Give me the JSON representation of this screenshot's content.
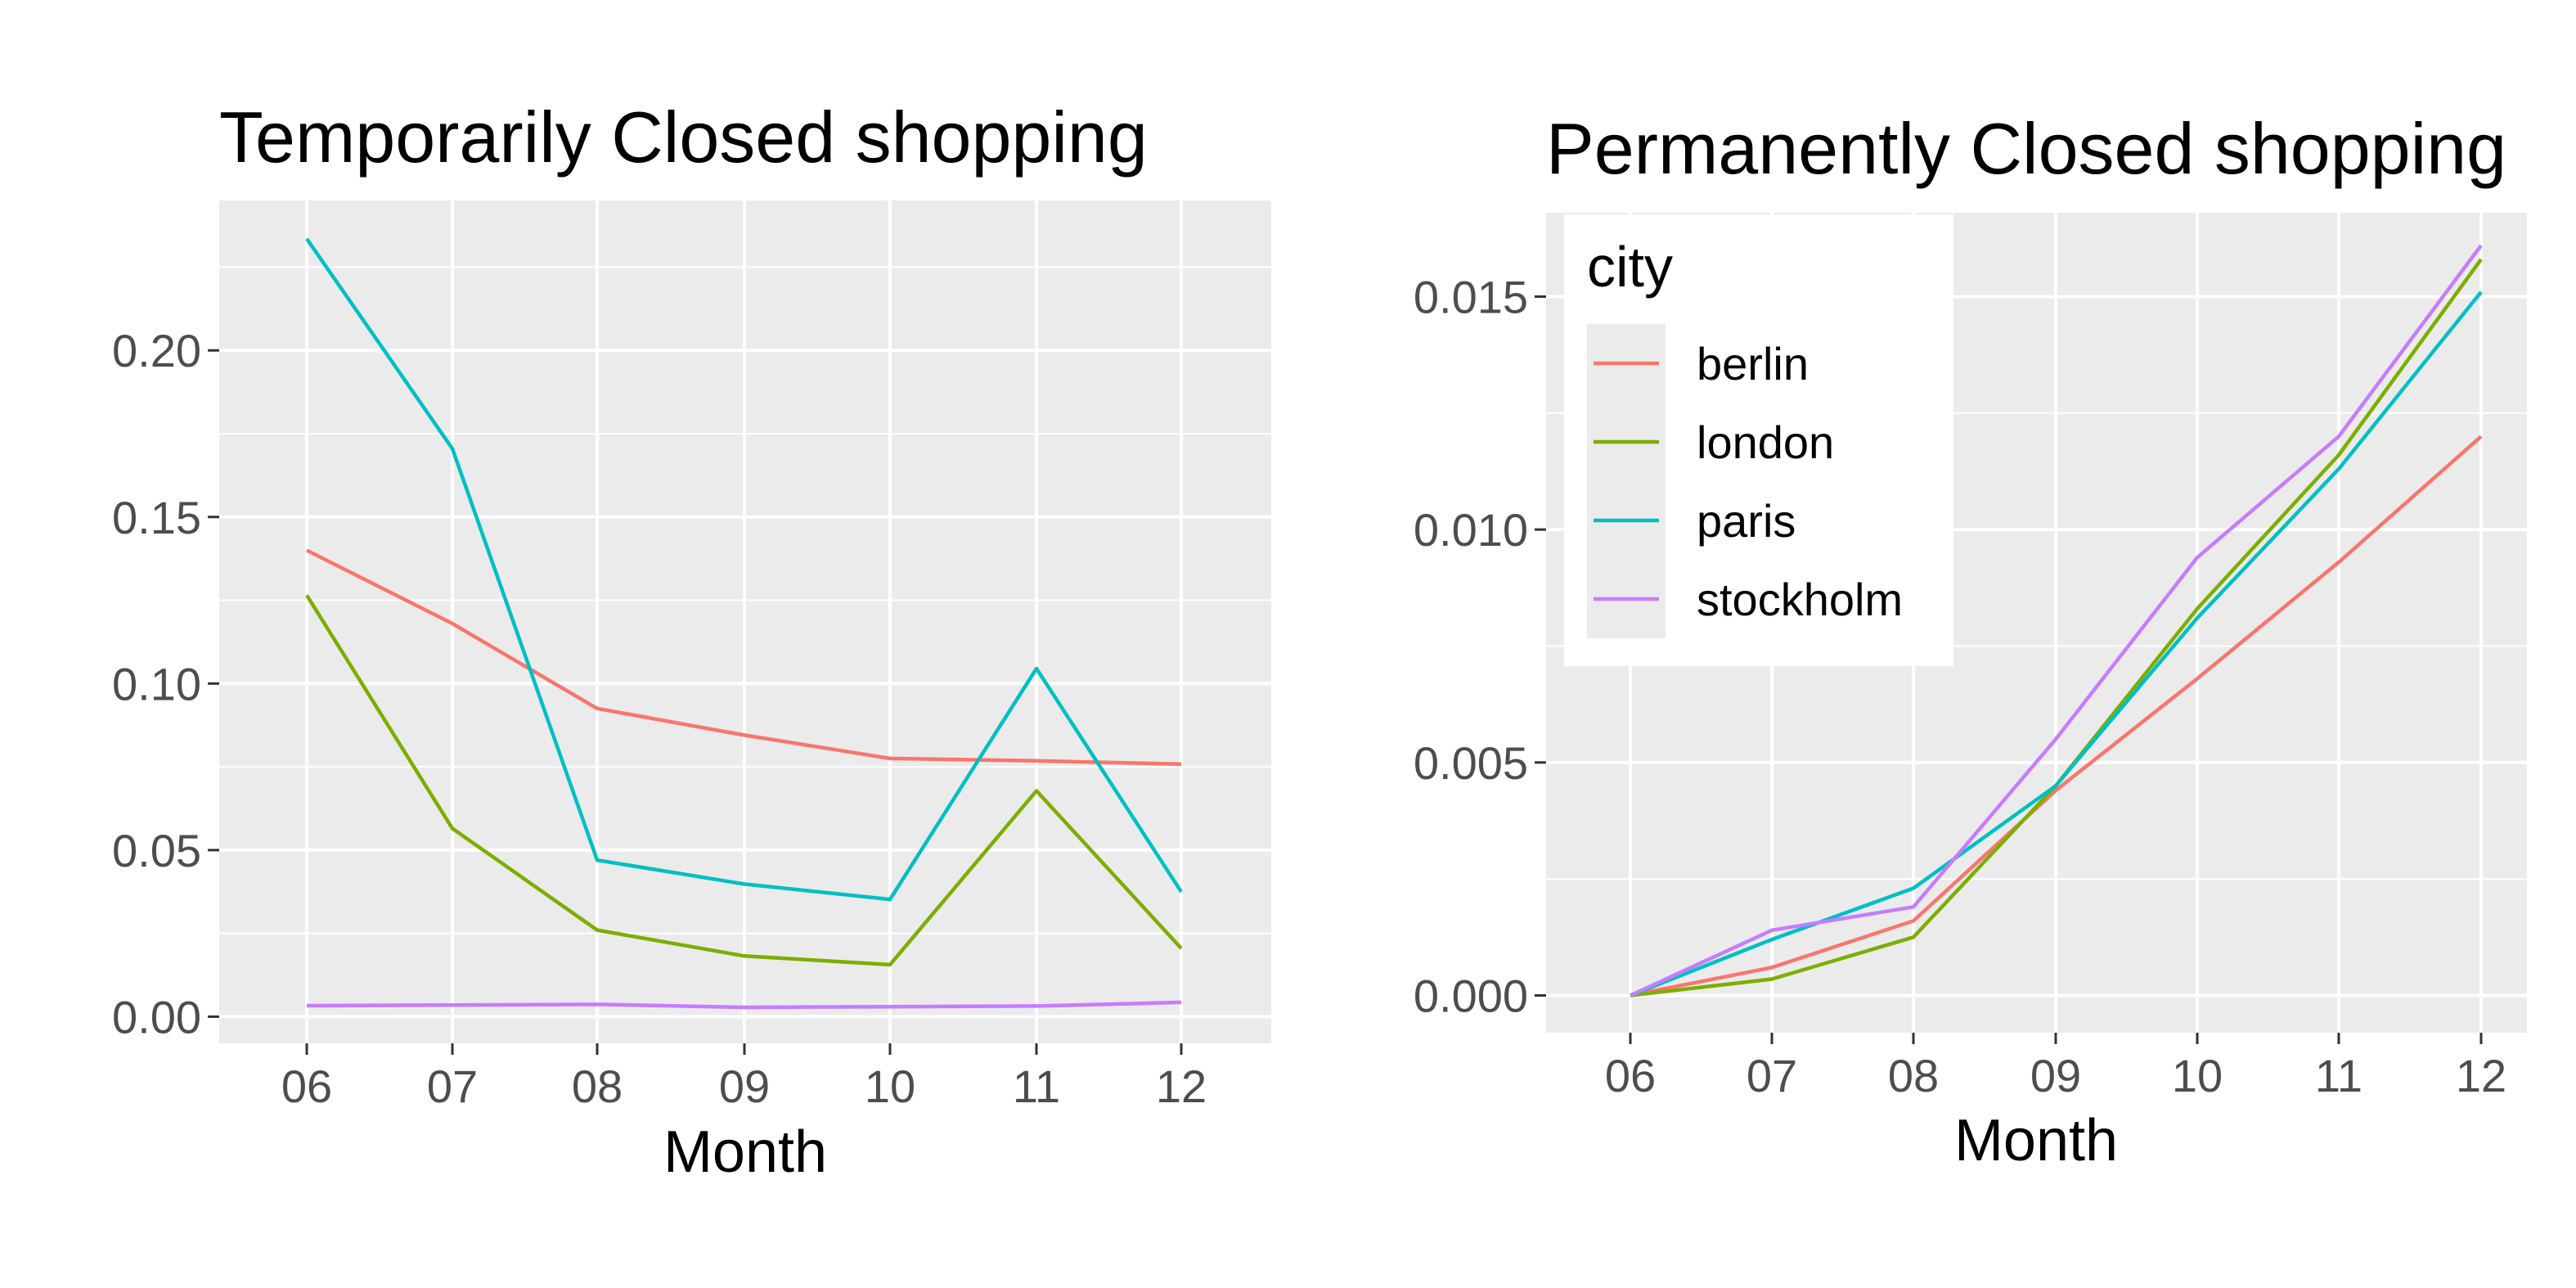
{
  "chart_data": [
    {
      "type": "line",
      "title": "Temporarily Closed shopping",
      "xlabel": "Month",
      "ylabel": "",
      "x": [
        "06",
        "07",
        "08",
        "09",
        "10",
        "11",
        "12"
      ],
      "yticks": [
        "0.00",
        "0.05",
        "0.10",
        "0.15",
        "0.20"
      ],
      "ylim": [
        -0.008,
        0.245
      ],
      "grid": true,
      "series": [
        {
          "name": "berlin",
          "color": "#F8766D",
          "values": [
            0.14,
            0.118,
            0.0925,
            0.0845,
            0.0775,
            0.0768,
            0.0758
          ]
        },
        {
          "name": "london",
          "color": "#7CAE00",
          "values": [
            0.1265,
            0.0565,
            0.026,
            0.0182,
            0.0156,
            0.0678,
            0.0205
          ]
        },
        {
          "name": "paris",
          "color": "#00BFC4",
          "values": [
            0.2335,
            0.1705,
            0.047,
            0.0398,
            0.0352,
            0.1045,
            0.0375
          ]
        },
        {
          "name": "stockholm",
          "color": "#C77CFF",
          "values": [
            0.0033,
            0.0035,
            0.0037,
            0.0028,
            0.003,
            0.0032,
            0.0043
          ]
        }
      ]
    },
    {
      "type": "line",
      "title": "Permanently Closed shopping",
      "xlabel": "Month",
      "ylabel": "",
      "x": [
        "06",
        "07",
        "08",
        "09",
        "10",
        "11",
        "12"
      ],
      "yticks": [
        "0.000",
        "0.005",
        "0.010",
        "0.015"
      ],
      "ylim": [
        -0.0008,
        0.0168
      ],
      "grid": true,
      "legend": {
        "title": "city",
        "position": "top-left",
        "entries": [
          "berlin",
          "london",
          "paris",
          "stockholm"
        ]
      },
      "series": [
        {
          "name": "berlin",
          "color": "#F8766D",
          "values": [
            0.0,
            0.0006,
            0.0016,
            0.0044,
            0.0068,
            0.0093,
            0.012
          ]
        },
        {
          "name": "london",
          "color": "#7CAE00",
          "values": [
            0.0,
            0.00035,
            0.00125,
            0.0045,
            0.0083,
            0.0116,
            0.0158
          ]
        },
        {
          "name": "paris",
          "color": "#00BFC4",
          "values": [
            0.0,
            0.0012,
            0.0023,
            0.0045,
            0.0081,
            0.0113,
            0.0151
          ]
        },
        {
          "name": "stockholm",
          "color": "#C77CFF",
          "values": [
            0.0,
            0.0014,
            0.0019,
            0.0055,
            0.0094,
            0.012,
            0.0161
          ]
        }
      ]
    }
  ]
}
